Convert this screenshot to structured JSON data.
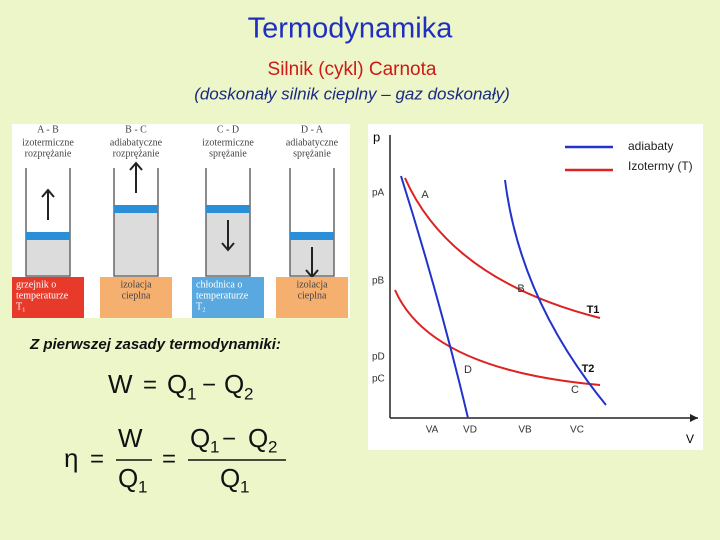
{
  "title": "Termodynamika",
  "subtitle": "Silnik (cykl) Carnota",
  "note": "(doskonały silnik cieplny – gaz doskonały)",
  "stages": [
    {
      "code": "A - B",
      "lines": [
        "izotermiczne",
        "rozprężanie"
      ]
    },
    {
      "code": "B - C",
      "lines": [
        "adiabatyczne",
        "rozprężanie"
      ]
    },
    {
      "code": "C - D",
      "lines": [
        "izotermiczne",
        "sprężanie"
      ]
    },
    {
      "code": "D - A",
      "lines": [
        "adiabatyczne",
        "sprężanie"
      ]
    }
  ],
  "boxes": [
    [
      "grzejnik o",
      "temperaturze",
      "T₁"
    ],
    [
      "izolacja",
      "cieplna"
    ],
    [
      "chłodnica o",
      "temperaturze",
      "T₂"
    ],
    [
      "izolacja",
      "cieplna"
    ]
  ],
  "heading": "Z pierwszej zasady termodynamiki:",
  "eq1": [
    "W",
    "=",
    "Q",
    "1",
    "−",
    "Q",
    "2"
  ],
  "eq2": [
    "η",
    "=",
    "W",
    "Q",
    "1",
    "=",
    "Q",
    "1",
    "−",
    "Q",
    "2",
    "Q",
    "1"
  ],
  "graph": {
    "y_axis": "p",
    "x_axis": "V",
    "legend": [
      "adiabaty",
      "Izotermy (T)"
    ],
    "yticks": [
      "pA",
      "pB",
      "pD",
      "pC"
    ],
    "xticks": [
      "VA",
      "VD",
      "VB",
      "VC"
    ],
    "points": [
      "A",
      "B",
      "C",
      "D"
    ],
    "isotherms": [
      "T1",
      "T2"
    ]
  }
}
